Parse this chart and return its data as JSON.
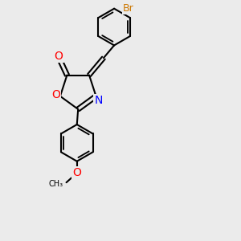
{
  "bg_color": "#ebebeb",
  "bond_color": "#000000",
  "O_color": "#ff0000",
  "N_color": "#0000ff",
  "Br_color": "#cc7700",
  "bond_width": 1.5,
  "figsize": [
    3.0,
    3.0
  ],
  "dpi": 100,
  "xlim": [
    0.0,
    10.0
  ],
  "ylim": [
    0.5,
    10.5
  ]
}
